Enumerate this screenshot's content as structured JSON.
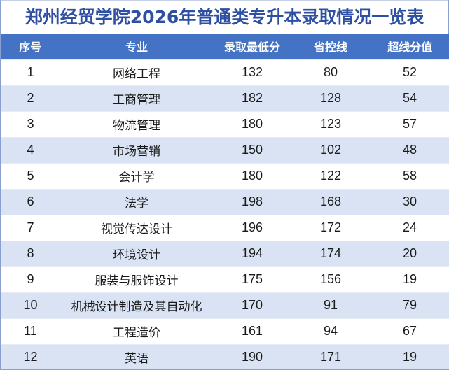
{
  "title": "郑州经贸学院2026年普通类专升本录取情况一览表",
  "colors": {
    "title_text": "#2f4fa3",
    "header_bg": "#4472c4",
    "header_text": "#ffffff",
    "stripe_bg": "#dae3f3"
  },
  "table": {
    "headers": [
      "序号",
      "专业",
      "录取最低分",
      "省控线",
      "超线分值"
    ],
    "rows": [
      {
        "index": "1",
        "major": "网络工程",
        "min_score": "132",
        "control_line": "80",
        "above_line": "52"
      },
      {
        "index": "2",
        "major": "工商管理",
        "min_score": "182",
        "control_line": "128",
        "above_line": "54"
      },
      {
        "index": "3",
        "major": "物流管理",
        "min_score": "180",
        "control_line": "123",
        "above_line": "57"
      },
      {
        "index": "4",
        "major": "市场营销",
        "min_score": "150",
        "control_line": "102",
        "above_line": "48"
      },
      {
        "index": "5",
        "major": "会计学",
        "min_score": "180",
        "control_line": "122",
        "above_line": "58"
      },
      {
        "index": "6",
        "major": "法学",
        "min_score": "198",
        "control_line": "168",
        "above_line": "30"
      },
      {
        "index": "7",
        "major": "视觉传达设计",
        "min_score": "196",
        "control_line": "172",
        "above_line": "24"
      },
      {
        "index": "8",
        "major": "环境设计",
        "min_score": "194",
        "control_line": "174",
        "above_line": "20"
      },
      {
        "index": "9",
        "major": "服装与服饰设计",
        "min_score": "175",
        "control_line": "156",
        "above_line": "19"
      },
      {
        "index": "10",
        "major": "机械设计制造及其自动化",
        "min_score": "170",
        "control_line": "91",
        "above_line": "79"
      },
      {
        "index": "11",
        "major": "工程造价",
        "min_score": "161",
        "control_line": "94",
        "above_line": "67"
      },
      {
        "index": "12",
        "major": "英语",
        "min_score": "190",
        "control_line": "171",
        "above_line": "19"
      }
    ]
  }
}
